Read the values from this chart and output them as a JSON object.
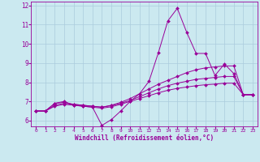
{
  "xlabel": "Windchill (Refroidissement éolien,°C)",
  "bg_color": "#cbe9f0",
  "grid_color": "#aaccdd",
  "line_color": "#990099",
  "marker_color": "#990099",
  "xlim": [
    -0.5,
    23.5
  ],
  "ylim": [
    5.7,
    12.2
  ],
  "yticks": [
    6,
    7,
    8,
    9,
    10,
    11,
    12
  ],
  "xticks": [
    0,
    1,
    2,
    3,
    4,
    5,
    6,
    7,
    8,
    9,
    10,
    11,
    12,
    13,
    14,
    15,
    16,
    17,
    18,
    19,
    20,
    21,
    22,
    23
  ],
  "series": [
    [
      6.5,
      6.5,
      6.9,
      7.0,
      6.8,
      6.75,
      6.7,
      5.75,
      6.05,
      6.5,
      7.0,
      7.4,
      8.05,
      9.55,
      11.2,
      11.85,
      10.6,
      9.5,
      9.5,
      8.35,
      8.95,
      8.45,
      7.35,
      7.35
    ],
    [
      6.5,
      6.5,
      6.9,
      6.95,
      6.85,
      6.8,
      6.75,
      6.7,
      6.8,
      6.95,
      7.15,
      7.4,
      7.65,
      7.9,
      8.1,
      8.3,
      8.5,
      8.65,
      8.75,
      8.8,
      8.85,
      8.85,
      7.35,
      7.35
    ],
    [
      6.5,
      6.5,
      6.8,
      6.9,
      6.85,
      6.8,
      6.75,
      6.7,
      6.78,
      6.9,
      7.05,
      7.25,
      7.45,
      7.65,
      7.82,
      7.95,
      8.05,
      8.15,
      8.2,
      8.25,
      8.3,
      8.3,
      7.35,
      7.35
    ],
    [
      6.5,
      6.5,
      6.75,
      6.85,
      6.8,
      6.75,
      6.7,
      6.65,
      6.72,
      6.85,
      7.0,
      7.15,
      7.3,
      7.45,
      7.58,
      7.68,
      7.75,
      7.82,
      7.87,
      7.9,
      7.95,
      7.95,
      7.35,
      7.35
    ]
  ]
}
